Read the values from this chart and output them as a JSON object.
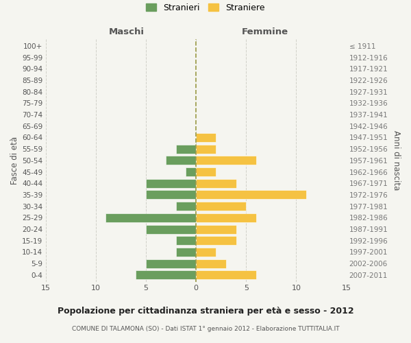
{
  "age_groups": [
    "0-4",
    "5-9",
    "10-14",
    "15-19",
    "20-24",
    "25-29",
    "30-34",
    "35-39",
    "40-44",
    "45-49",
    "50-54",
    "55-59",
    "60-64",
    "65-69",
    "70-74",
    "75-79",
    "80-84",
    "85-89",
    "90-94",
    "95-99",
    "100+"
  ],
  "birth_years": [
    "2007-2011",
    "2002-2006",
    "1997-2001",
    "1992-1996",
    "1987-1991",
    "1982-1986",
    "1977-1981",
    "1972-1976",
    "1967-1971",
    "1962-1966",
    "1957-1961",
    "1952-1956",
    "1947-1951",
    "1942-1946",
    "1937-1941",
    "1932-1936",
    "1927-1931",
    "1922-1926",
    "1917-1921",
    "1912-1916",
    "≤ 1911"
  ],
  "maschi": [
    6,
    5,
    2,
    2,
    5,
    9,
    2,
    5,
    5,
    1,
    3,
    2,
    0,
    0,
    0,
    0,
    0,
    0,
    0,
    0,
    0
  ],
  "femmine": [
    6,
    3,
    2,
    4,
    4,
    6,
    5,
    11,
    4,
    2,
    6,
    2,
    2,
    0,
    0,
    0,
    0,
    0,
    0,
    0,
    0
  ],
  "bar_color_maschi": "#6a9e5e",
  "bar_color_femmine": "#f5c242",
  "title": "Popolazione per cittadinanza straniera per età e sesso - 2012",
  "subtitle": "COMUNE DI TALAMONA (SO) - Dati ISTAT 1° gennaio 2012 - Elaborazione TUTTITALIA.IT",
  "ylabel_left": "Fasce di età",
  "ylabel_right": "Anni di nascita",
  "xlabel_maschi": "Maschi",
  "xlabel_femmine": "Femmine",
  "legend_maschi": "Stranieri",
  "legend_femmine": "Straniere",
  "xlim": 15,
  "background_color": "#f5f5f0",
  "grid_color": "#d0d0c8"
}
